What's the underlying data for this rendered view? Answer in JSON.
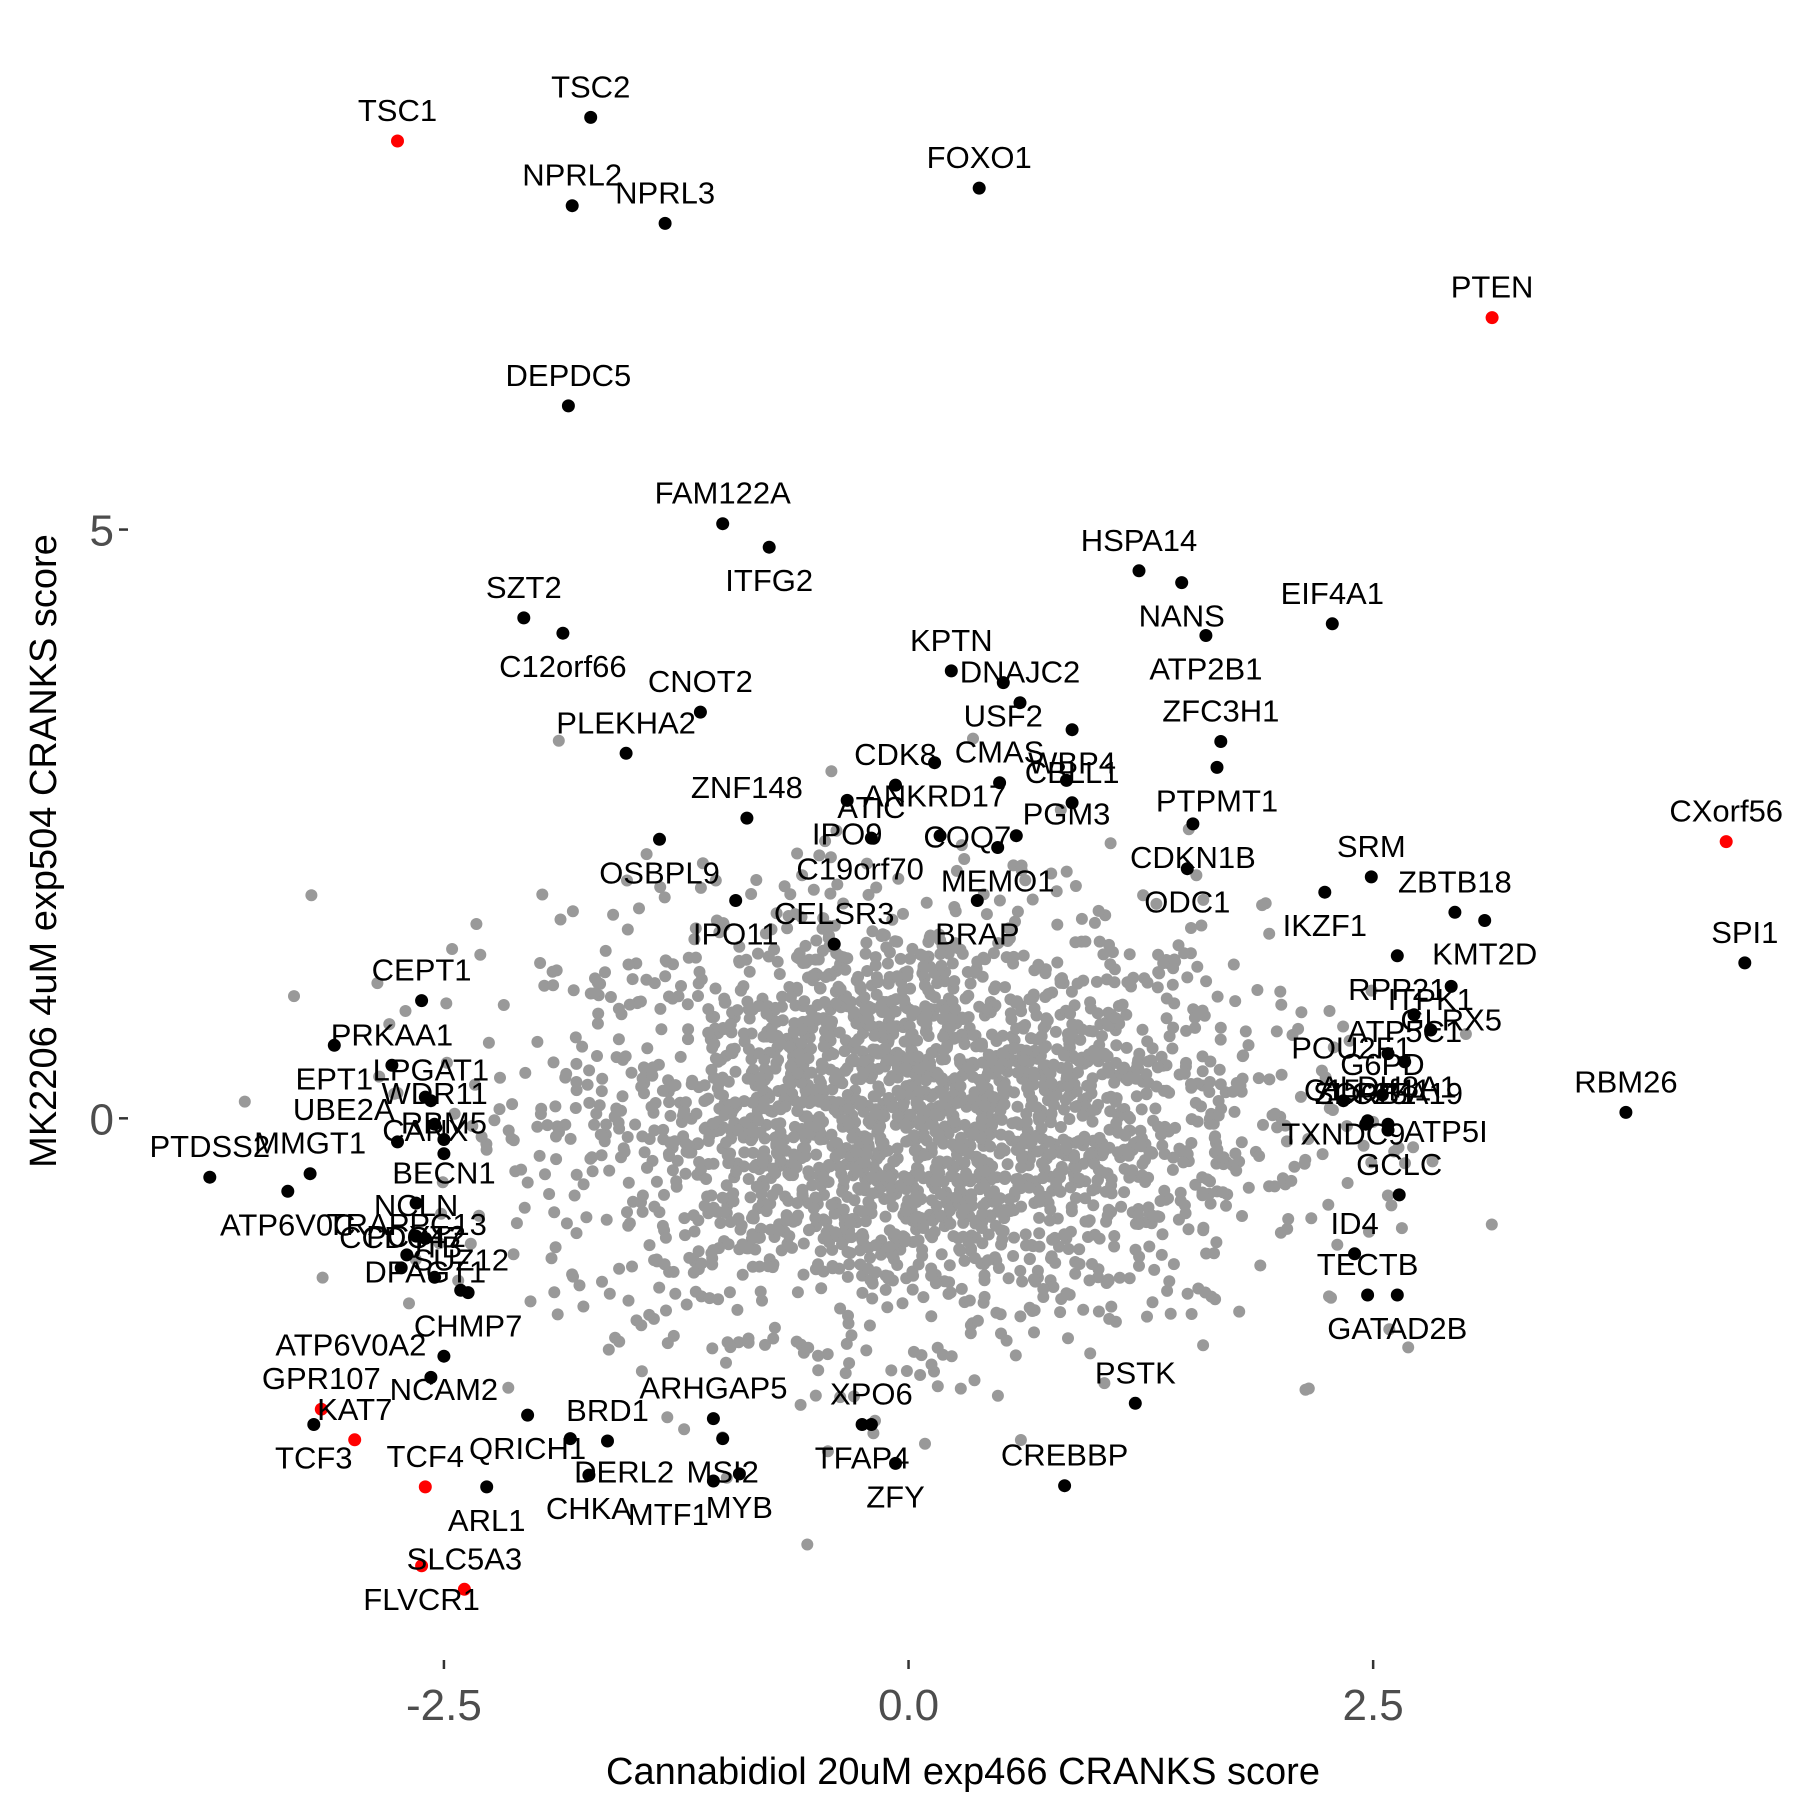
{
  "chart_data": {
    "type": "scatter",
    "title": "",
    "xlabel": "Cannabidiol 20uM exp466 CRANKS score",
    "ylabel": "MK2206 4uM exp504 CRANKS score",
    "xlim": [
      -4.2,
      4.7
    ],
    "ylim": [
      -4.6,
      9.2
    ],
    "x_ticks": [
      {
        "value": -2.5,
        "label": "-2.5"
      },
      {
        "value": 0.0,
        "label": "0.0"
      },
      {
        "value": 2.5,
        "label": "2.5"
      }
    ],
    "y_ticks": [
      {
        "value": 0,
        "label": "0"
      },
      {
        "value": 5,
        "label": "5"
      }
    ],
    "grid": false,
    "legend": "none",
    "colors": {
      "background": "#f2f2f2",
      "highlighted": "#ff0000",
      "labeled": "#000000",
      "other": "#999999"
    },
    "background_cloud": {
      "description_free": true,
      "center": [
        0.0,
        0.0
      ]
    },
    "points": [
      {
        "label": "TSC1",
        "x": -2.75,
        "y": 8.3,
        "color": "red"
      },
      {
        "label": "TSC2",
        "x": -1.71,
        "y": 8.5,
        "color": "black"
      },
      {
        "label": "NPRL2",
        "x": -1.81,
        "y": 7.75,
        "color": "black"
      },
      {
        "label": "NPRL3",
        "x": -1.31,
        "y": 7.6,
        "color": "black"
      },
      {
        "label": "FOXO1",
        "x": 0.38,
        "y": 7.9,
        "color": "black"
      },
      {
        "label": "PTEN",
        "x": 3.14,
        "y": 6.8,
        "color": "red"
      },
      {
        "label": "DEPDC5",
        "x": -1.83,
        "y": 6.05,
        "color": "black"
      },
      {
        "label": "FAM122A",
        "x": -1.0,
        "y": 5.05,
        "color": "black"
      },
      {
        "label": "ITFG2",
        "x": -0.75,
        "y": 4.85,
        "color": "black"
      },
      {
        "label": "HSPA14",
        "x": 1.24,
        "y": 4.65,
        "color": "black"
      },
      {
        "label": "NANS",
        "x": 1.47,
        "y": 4.55,
        "color": "black"
      },
      {
        "label": "EIF4A1",
        "x": 2.28,
        "y": 4.2,
        "color": "black"
      },
      {
        "label": "SZT2",
        "x": -2.07,
        "y": 4.25,
        "color": "black"
      },
      {
        "label": "C12orf66",
        "x": -1.86,
        "y": 4.12,
        "color": "black"
      },
      {
        "label": "ATP2B1",
        "x": 1.6,
        "y": 4.1,
        "color": "black"
      },
      {
        "label": "CNOT2",
        "x": -1.12,
        "y": 3.45,
        "color": "black"
      },
      {
        "label": "KPTN",
        "x": 0.23,
        "y": 3.8,
        "color": "black"
      },
      {
        "label": "USF2",
        "x": 0.51,
        "y": 3.7,
        "color": "black"
      },
      {
        "label": "DNAJC2",
        "x": 0.6,
        "y": 3.53,
        "color": "black"
      },
      {
        "label": "ANKRD17",
        "x": 0.14,
        "y": 3.02,
        "color": "black"
      },
      {
        "label": "WBP4",
        "x": 0.88,
        "y": 3.3,
        "color": "black"
      },
      {
        "label": "ZFC3H1",
        "x": 1.68,
        "y": 3.2,
        "color": "black"
      },
      {
        "label": "PTPMT1",
        "x": 1.66,
        "y": 2.98,
        "color": "black"
      },
      {
        "label": "PLEKHA2",
        "x": -1.52,
        "y": 3.1,
        "color": "black"
      },
      {
        "label": "CMAS",
        "x": 0.49,
        "y": 2.85,
        "color": "black"
      },
      {
        "label": "PGM3",
        "x": 0.85,
        "y": 2.87,
        "color": "black"
      },
      {
        "label": "CDK8",
        "x": -0.07,
        "y": 2.83,
        "color": "black"
      },
      {
        "label": "IPO9",
        "x": -0.33,
        "y": 2.7,
        "color": "black"
      },
      {
        "label": "ZNF148",
        "x": -0.87,
        "y": 2.55,
        "color": "black"
      },
      {
        "label": "MEMO1",
        "x": 0.48,
        "y": 2.3,
        "color": "black"
      },
      {
        "label": "CDKN1B",
        "x": 1.53,
        "y": 2.5,
        "color": "black"
      },
      {
        "label": "OSBPL9",
        "x": -1.34,
        "y": 2.37,
        "color": "black"
      },
      {
        "label": "C19orf70",
        "x": 0.17,
        "y": 2.4,
        "color": "black"
      },
      {
        "label": "CBLL1",
        "x": 0.88,
        "y": 2.68,
        "color": "black"
      },
      {
        "label": "SRM",
        "x": 2.49,
        "y": 2.05,
        "color": "black"
      },
      {
        "label": "CXorf56",
        "x": 4.4,
        "y": 2.35,
        "color": "red"
      },
      {
        "label": "IPO11",
        "x": -0.93,
        "y": 1.85,
        "color": "black"
      },
      {
        "label": "ATIC",
        "x": -0.2,
        "y": 2.38,
        "color": "black"
      },
      {
        "label": "CELSR3",
        "x": -0.4,
        "y": 1.48,
        "color": "black"
      },
      {
        "label": "BRAP",
        "x": 0.37,
        "y": 1.85,
        "color": "black"
      },
      {
        "label": "COQ7",
        "x": 0.58,
        "y": 2.4,
        "color": "black"
      },
      {
        "label": "IKZF1",
        "x": 2.24,
        "y": 1.92,
        "color": "black"
      },
      {
        "label": "ODC1",
        "x": 1.5,
        "y": 2.12,
        "color": "black"
      },
      {
        "label": "ZBTB18",
        "x": 2.94,
        "y": 1.75,
        "color": "black"
      },
      {
        "label": "KMT2D",
        "x": 3.1,
        "y": 1.68,
        "color": "black"
      },
      {
        "label": "RPP21",
        "x": 2.63,
        "y": 1.38,
        "color": "black"
      },
      {
        "label": "GLRX5",
        "x": 2.92,
        "y": 1.12,
        "color": "black"
      },
      {
        "label": "SPI1",
        "x": 4.5,
        "y": 1.32,
        "color": "black"
      },
      {
        "label": "PRKAA1",
        "x": -2.78,
        "y": 0.45,
        "color": "black"
      },
      {
        "label": "CEPT1",
        "x": -2.62,
        "y": 1.0,
        "color": "black"
      },
      {
        "label": "EPT1",
        "x": -3.09,
        "y": 0.62,
        "color": "black"
      },
      {
        "label": "LPGAT1",
        "x": -2.57,
        "y": 0.15,
        "color": "black"
      },
      {
        "label": "ALDH8A1",
        "x": 2.58,
        "y": 0.55,
        "color": "black"
      },
      {
        "label": "POU2F1",
        "x": 2.72,
        "y": 0.88,
        "color": "black"
      },
      {
        "label": "ITPK1",
        "x": 2.81,
        "y": 0.75,
        "color": "black"
      },
      {
        "label": "ATP5C1",
        "x": 2.67,
        "y": 0.48,
        "color": "black"
      },
      {
        "label": "MMGT1",
        "x": -3.22,
        "y": -0.47,
        "color": "black"
      },
      {
        "label": "CANX",
        "x": -2.6,
        "y": 0.18,
        "color": "black"
      },
      {
        "label": "WDR11",
        "x": -2.55,
        "y": -0.05,
        "color": "black"
      },
      {
        "label": "BECN1",
        "x": -2.5,
        "y": -0.18,
        "color": "black"
      },
      {
        "label": "TXNDC9",
        "x": 2.34,
        "y": 0.15,
        "color": "black"
      },
      {
        "label": "G6PD",
        "x": 2.55,
        "y": 0.2,
        "color": "black"
      },
      {
        "label": "C15orf41",
        "x": 2.47,
        "y": -0.02,
        "color": "black"
      },
      {
        "label": "RBM26",
        "x": 3.86,
        "y": 0.05,
        "color": "black"
      },
      {
        "label": "PTDSS2",
        "x": -3.76,
        "y": -0.5,
        "color": "black"
      },
      {
        "label": "RBM5",
        "x": -2.5,
        "y": -0.3,
        "color": "black"
      },
      {
        "label": "UBE2A",
        "x": -2.75,
        "y": -0.2,
        "color": "black"
      },
      {
        "label": "ZCRB1",
        "x": 2.46,
        "y": -0.05,
        "color": "black"
      },
      {
        "label": "ATP5I",
        "x": 2.58,
        "y": -0.1,
        "color": "black"
      },
      {
        "label": "GCLC",
        "x": 2.64,
        "y": -0.65,
        "color": "black"
      },
      {
        "label": "SLC25A19",
        "x": 2.58,
        "y": -0.05,
        "color": "black"
      },
      {
        "label": "ATP6V0C",
        "x": -3.34,
        "y": -0.62,
        "color": "black"
      },
      {
        "label": "PCYT2",
        "x": -2.65,
        "y": -0.72,
        "color": "black"
      },
      {
        "label": "NCLN",
        "x": -2.65,
        "y": -1.0,
        "color": "black"
      },
      {
        "label": "DPAGT1",
        "x": -2.6,
        "y": -1.02,
        "color": "black"
      },
      {
        "label": "ID4",
        "x": 2.4,
        "y": -1.15,
        "color": "black"
      },
      {
        "label": "TRAPPC13",
        "x": -2.7,
        "y": -1.16,
        "color": "black"
      },
      {
        "label": "CHMP7",
        "x": -2.37,
        "y": -1.48,
        "color": "black"
      },
      {
        "label": "TECTB",
        "x": 2.47,
        "y": -1.5,
        "color": "black"
      },
      {
        "label": "GATAD2B",
        "x": 2.63,
        "y": -1.5,
        "color": "black"
      },
      {
        "label": "CCDC47",
        "x": -2.73,
        "y": -1.27,
        "color": "black"
      },
      {
        "label": "JTB",
        "x": -2.55,
        "y": -1.35,
        "color": "black"
      },
      {
        "label": "SUZ12",
        "x": -2.41,
        "y": -1.46,
        "color": "black"
      },
      {
        "label": "NCAM2",
        "x": -2.5,
        "y": -2.02,
        "color": "black"
      },
      {
        "label": "XPO6",
        "x": -0.2,
        "y": -2.6,
        "color": "black"
      },
      {
        "label": "ARHGAP5",
        "x": -1.05,
        "y": -2.55,
        "color": "black"
      },
      {
        "label": "GPR107",
        "x": -3.16,
        "y": -2.47,
        "color": "red"
      },
      {
        "label": "KAT7",
        "x": -2.98,
        "y": -2.73,
        "color": "red"
      },
      {
        "label": "QRICH1",
        "x": -2.05,
        "y": -2.52,
        "color": "black"
      },
      {
        "label": "PSTK",
        "x": 1.22,
        "y": -2.42,
        "color": "black"
      },
      {
        "label": "TCF3",
        "x": -3.2,
        "y": -2.6,
        "color": "black"
      },
      {
        "label": "TFAP4",
        "x": -0.25,
        "y": -2.6,
        "color": "black"
      },
      {
        "label": "MSI2",
        "x": -1.0,
        "y": -2.72,
        "color": "black"
      },
      {
        "label": "BRD1",
        "x": -1.62,
        "y": -2.74,
        "color": "black"
      },
      {
        "label": "DERL2",
        "x": -1.82,
        "y": -2.72,
        "color": "black"
      },
      {
        "label": "ATP6V0A2",
        "x": -2.57,
        "y": -2.2,
        "color": "black"
      },
      {
        "label": "ZFY",
        "x": -0.07,
        "y": -2.93,
        "color": "black"
      },
      {
        "label": "CHKA",
        "x": -1.72,
        "y": -3.03,
        "color": "black"
      },
      {
        "label": "MYB",
        "x": -0.91,
        "y": -3.02,
        "color": "black"
      },
      {
        "label": "CREBBP",
        "x": 0.84,
        "y": -3.12,
        "color": "black"
      },
      {
        "label": "TCF4",
        "x": -2.6,
        "y": -3.13,
        "color": "red"
      },
      {
        "label": "ARL1",
        "x": -2.27,
        "y": -3.13,
        "color": "black"
      },
      {
        "label": "MTF1",
        "x": -1.05,
        "y": -3.08,
        "color": "black"
      },
      {
        "label": "FLVCR1",
        "x": -2.62,
        "y": -3.8,
        "color": "red"
      },
      {
        "label": "SLC5A3",
        "x": -2.39,
        "y": -4.0,
        "color": "red"
      }
    ]
  }
}
